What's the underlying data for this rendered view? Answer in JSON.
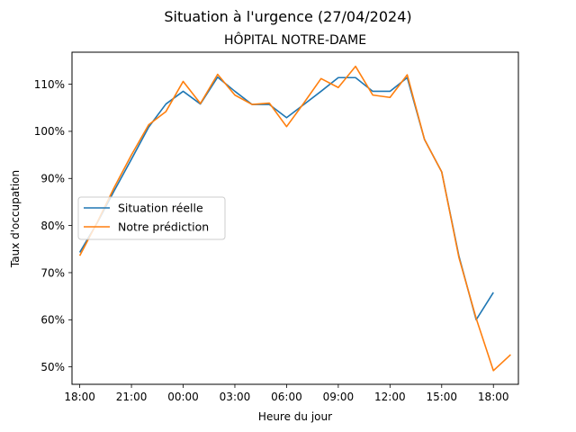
{
  "figure": {
    "suptitle": "Situation à l'urgence (27/04/2024)"
  },
  "chart_data": {
    "type": "line",
    "title": "HÔPITAL NOTRE-DAME",
    "xlabel": "Heure du jour",
    "ylabel": "Taux d'occupation",
    "x_unit": "hour",
    "x_hours": [
      18,
      19,
      20,
      21,
      22,
      23,
      24,
      25,
      26,
      27,
      28,
      29,
      30,
      31,
      32,
      33,
      34,
      35,
      36,
      37,
      38,
      39,
      40,
      41,
      42,
      43
    ],
    "xlim": [
      17.55,
      43.45
    ],
    "ylim": [
      46.3,
      116.8
    ],
    "x_ticks": [
      {
        "hour": 18,
        "label": "18:00"
      },
      {
        "hour": 21,
        "label": "21:00"
      },
      {
        "hour": 24,
        "label": "00:00"
      },
      {
        "hour": 27,
        "label": "03:00"
      },
      {
        "hour": 30,
        "label": "06:00"
      },
      {
        "hour": 33,
        "label": "09:00"
      },
      {
        "hour": 36,
        "label": "12:00"
      },
      {
        "hour": 39,
        "label": "15:00"
      },
      {
        "hour": 42,
        "label": "18:00"
      }
    ],
    "y_ticks": [
      {
        "value": 50,
        "label": "50%"
      },
      {
        "value": 60,
        "label": "60%"
      },
      {
        "value": 70,
        "label": "70%"
      },
      {
        "value": 80,
        "label": "80%"
      },
      {
        "value": 90,
        "label": "90%"
      },
      {
        "value": 100,
        "label": "100%"
      },
      {
        "value": 110,
        "label": "110%"
      }
    ],
    "grid": false,
    "legend_position": "center-left",
    "series": [
      {
        "name": "Situation réelle",
        "color": "#1f77b4",
        "values": [
          74.3,
          80.5,
          87.4,
          94.1,
          100.9,
          105.8,
          108.5,
          105.8,
          111.5,
          108.5,
          105.7,
          105.7,
          102.9,
          105.7,
          108.5,
          111.4,
          111.4,
          108.5,
          108.5,
          111.4,
          null,
          null,
          null,
          null,
          66.3,
          null
        ]
      },
      {
        "name": "Notre prédiction",
        "color": "#ff7f0e",
        "values": [
          73.6,
          80.6,
          88.1,
          95.0,
          101.4,
          104.2,
          110.6,
          105.9,
          112.1,
          107.7,
          105.7,
          106.0,
          101.0,
          106.0,
          111.2,
          109.3,
          113.8,
          107.7,
          107.2,
          112.0,
          98.3,
          91.4,
          73.2,
          60.3,
          49.2,
          52.6
        ]
      }
    ],
    "extra_real_points": {
      "x_hours": [
        38,
        39,
        40,
        41,
        42
      ],
      "values": [
        98.3,
        91.4,
        73.5,
        60.0,
        65.8
      ]
    }
  }
}
